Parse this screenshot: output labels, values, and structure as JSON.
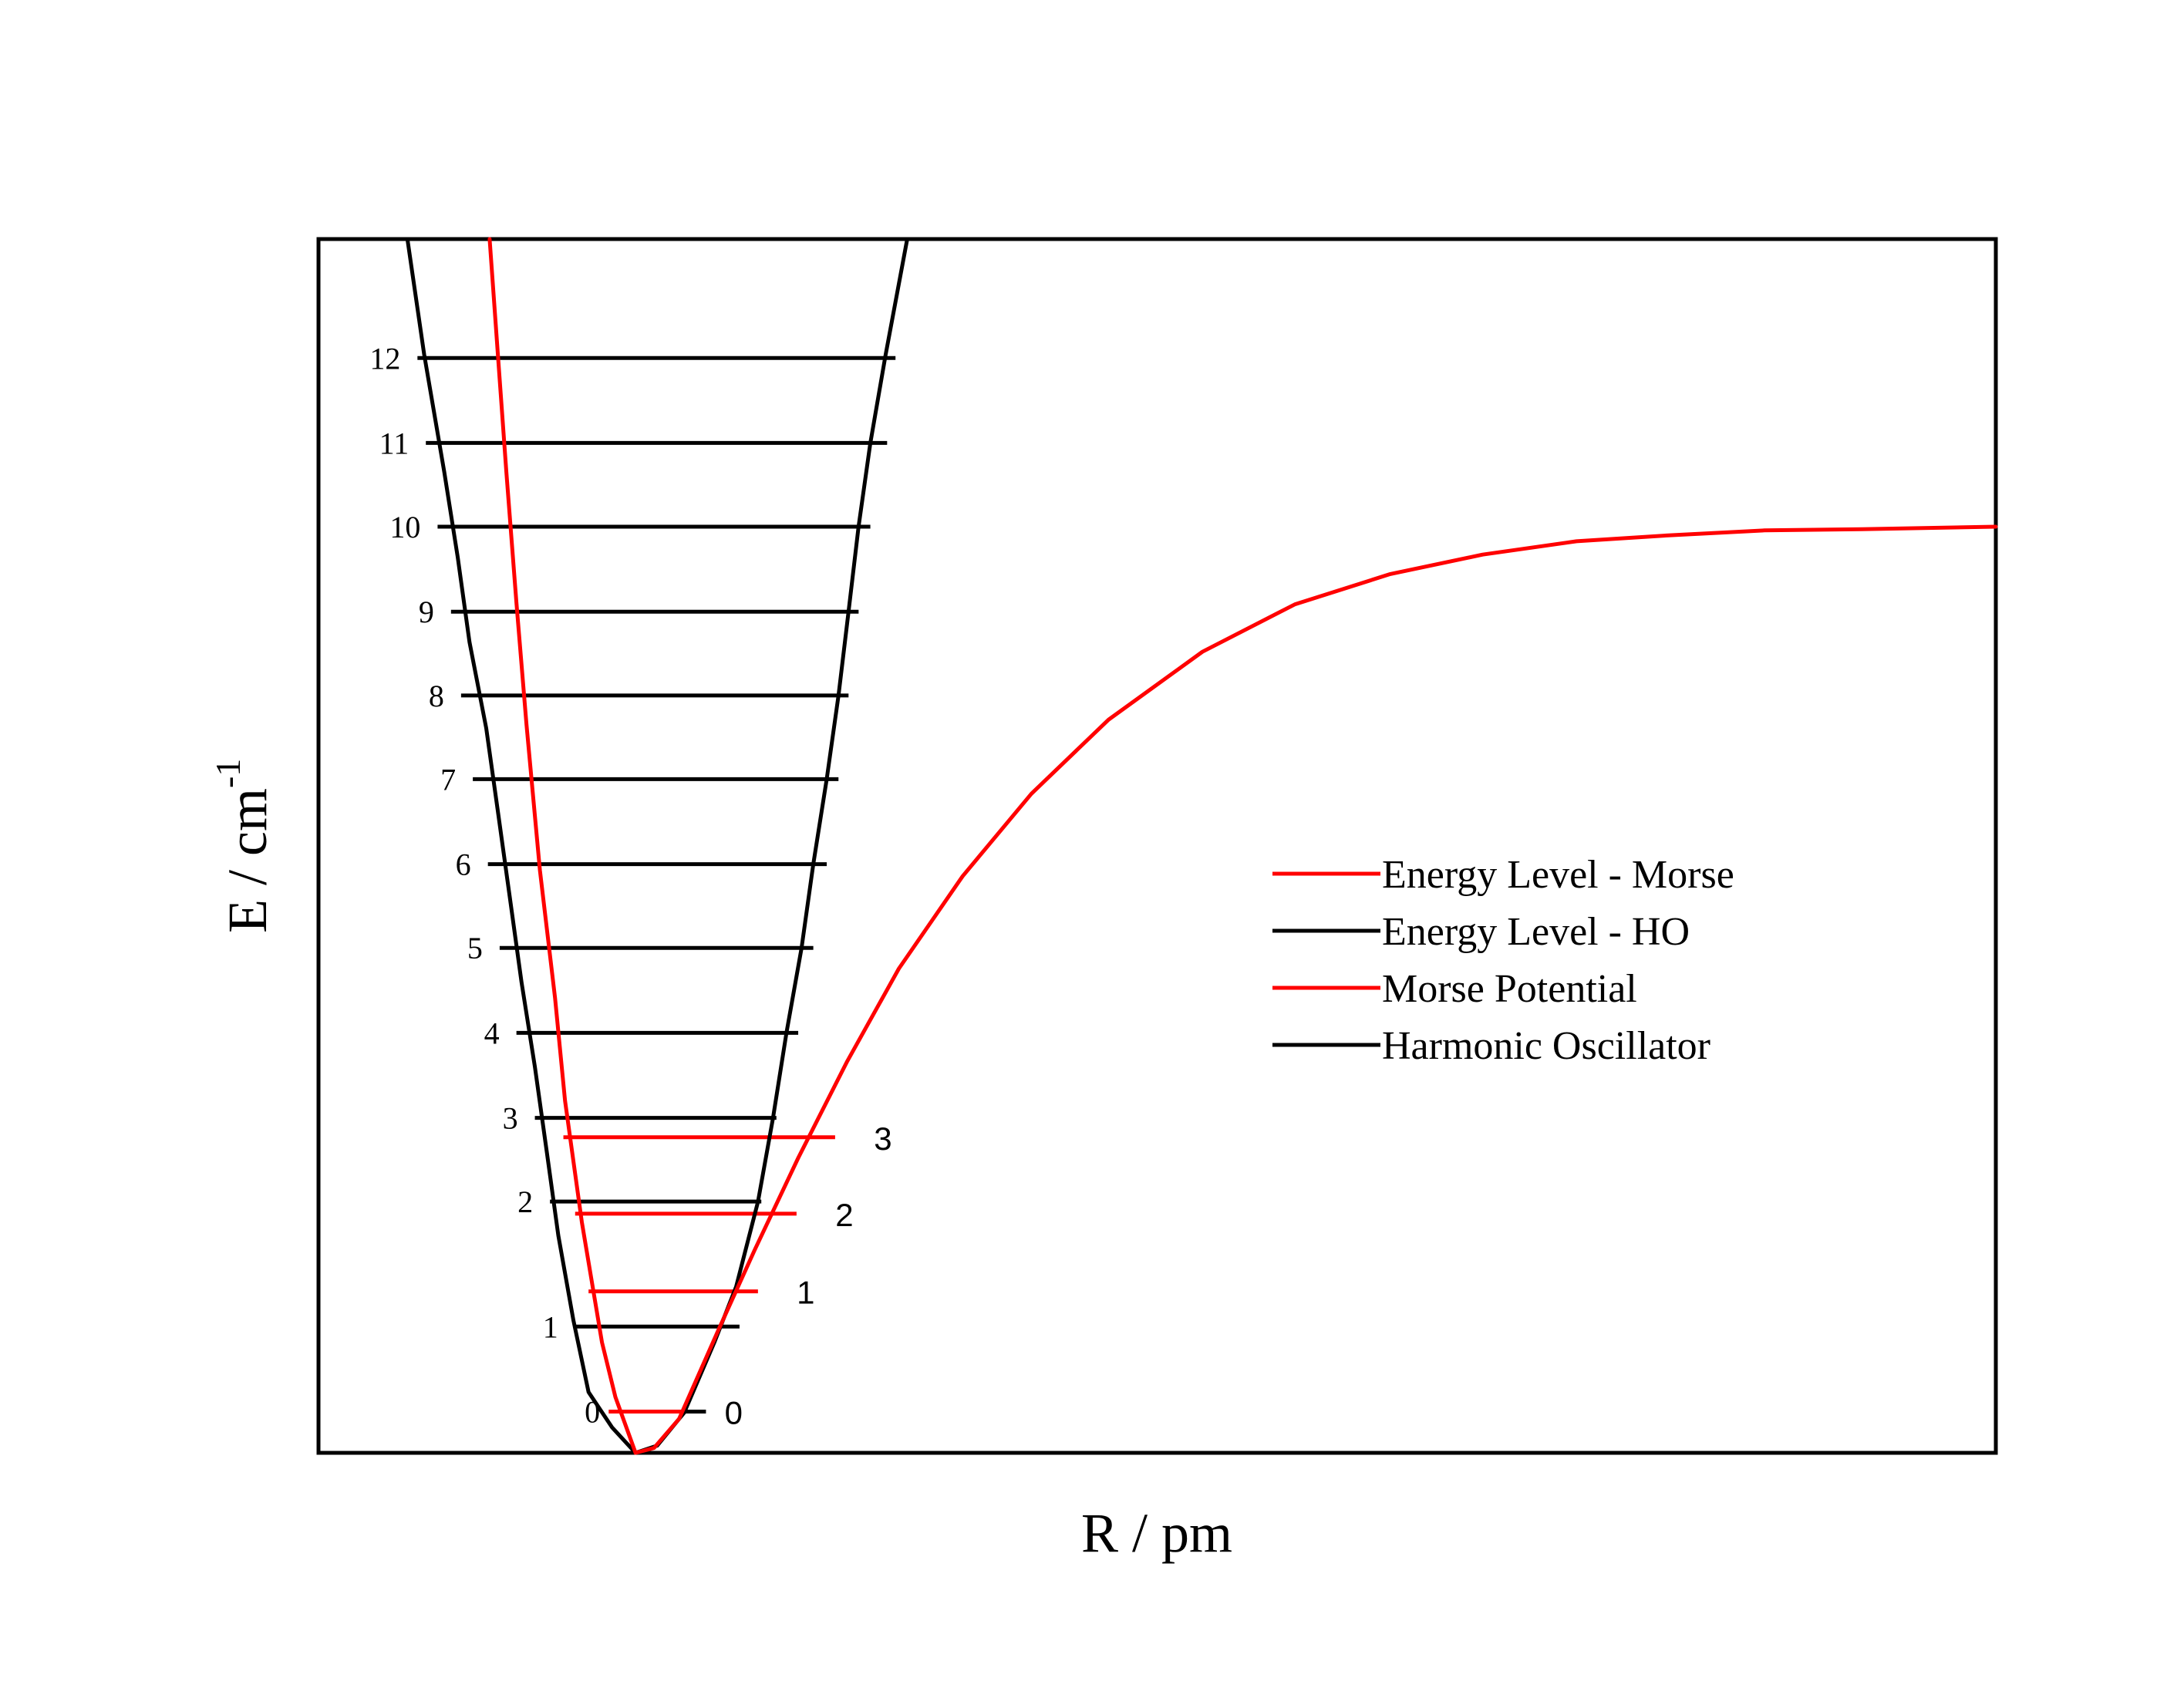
{
  "chart_data": {
    "type": "line",
    "title": "",
    "xlabel": "R / pm",
    "ylabel_main": "E / cm",
    "ylabel_sup": "-1",
    "show_axis_ticks": false,
    "grid": false,
    "legend": {
      "placement": "center-right",
      "entries": [
        {
          "label": "Energy Level - Morse",
          "color": "#ff0000"
        },
        {
          "label": "Energy Level - HO",
          "color": "#000000"
        },
        {
          "label": " Morse Potential",
          "color": "#ff0000"
        },
        {
          "label": " Harmonic Oscillator",
          "color": "#000000"
        }
      ]
    },
    "colors": {
      "morse": "#ff0000",
      "harmonic": "#000000"
    },
    "xlim": [
      0,
      100
    ],
    "ylim": [
      0,
      100
    ],
    "harmonic_oscillator": {
      "name": "Harmonic Oscillator",
      "points": [
        [
          5.3,
          100
        ],
        [
          6.3,
          90.5
        ],
        [
          7.5,
          80.8
        ],
        [
          8.3,
          73.8
        ],
        [
          9.0,
          66.8
        ],
        [
          10.0,
          59.7
        ],
        [
          10.7,
          52.8
        ],
        [
          11.4,
          45.8
        ],
        [
          12.1,
          38.8
        ],
        [
          12.9,
          31.8
        ],
        [
          13.6,
          24.9
        ],
        [
          14.3,
          17.9
        ],
        [
          15.2,
          10.9
        ],
        [
          16.1,
          5.0
        ],
        [
          17.5,
          2.1
        ],
        [
          18.9,
          0
        ],
        [
          20.2,
          0.6
        ],
        [
          21.8,
          3.3
        ],
        [
          23.6,
          9.1
        ],
        [
          24.9,
          13.7
        ],
        [
          26.2,
          20.7
        ],
        [
          27.1,
          27.6
        ],
        [
          27.9,
          34.6
        ],
        [
          28.8,
          41.6
        ],
        [
          29.5,
          48.5
        ],
        [
          30.3,
          55.5
        ],
        [
          31.0,
          62.4
        ],
        [
          31.6,
          69.3
        ],
        [
          32.2,
          76.3
        ],
        [
          32.9,
          83.2
        ],
        [
          33.8,
          90.4
        ],
        [
          35.1,
          100
        ]
      ]
    },
    "morse_potential": {
      "name": "Morse Potential",
      "points": [
        [
          10.2,
          100
        ],
        [
          10.7,
          90.4
        ],
        [
          11.2,
          80.8
        ],
        [
          11.8,
          70.0
        ],
        [
          12.4,
          60.0
        ],
        [
          13.2,
          48.0
        ],
        [
          14.1,
          37.5
        ],
        [
          14.7,
          29.0
        ],
        [
          15.7,
          19.0
        ],
        [
          16.9,
          9.1
        ],
        [
          17.7,
          4.6
        ],
        [
          18.9,
          0
        ],
        [
          20.0,
          0.4
        ],
        [
          21.5,
          2.8
        ],
        [
          23.8,
          10.0
        ],
        [
          26.0,
          16.7
        ],
        [
          28.6,
          24.3
        ],
        [
          31.5,
          32.2
        ],
        [
          34.6,
          39.9
        ],
        [
          38.4,
          47.5
        ],
        [
          42.5,
          54.3
        ],
        [
          47.1,
          60.4
        ],
        [
          52.7,
          66.0
        ],
        [
          58.2,
          69.9
        ],
        [
          63.9,
          72.4
        ],
        [
          69.4,
          74.0
        ],
        [
          75.0,
          75.1
        ],
        [
          80.6,
          75.6
        ],
        [
          86.2,
          76.0
        ],
        [
          92.0,
          76.1
        ],
        [
          100,
          76.3
        ]
      ]
    },
    "ho_levels": [
      {
        "v": "0",
        "label": "0",
        "x1": 17.8,
        "x2": 23.1,
        "y": 3.4
      },
      {
        "v": "1",
        "label": "1",
        "x1": 15.3,
        "x2": 25.1,
        "y": 10.4
      },
      {
        "v": "2",
        "label": "2",
        "x1": 13.8,
        "x2": 26.4,
        "y": 20.7
      },
      {
        "v": "3",
        "label": "3",
        "x1": 12.9,
        "x2": 27.3,
        "y": 27.6
      },
      {
        "v": "4",
        "label": "4",
        "x1": 11.8,
        "x2": 28.6,
        "y": 34.6
      },
      {
        "v": "5",
        "label": "5",
        "x1": 10.8,
        "x2": 29.5,
        "y": 41.6
      },
      {
        "v": "6",
        "label": "6",
        "x1": 10.1,
        "x2": 30.3,
        "y": 48.5
      },
      {
        "v": "7",
        "label": "7",
        "x1": 9.2,
        "x2": 31.0,
        "y": 55.5
      },
      {
        "v": "8",
        "label": "8",
        "x1": 8.5,
        "x2": 31.6,
        "y": 62.4
      },
      {
        "v": "9",
        "label": "9",
        "x1": 7.9,
        "x2": 32.2,
        "y": 69.3
      },
      {
        "v": "10",
        "label": "10",
        "x1": 7.1,
        "x2": 32.9,
        "y": 76.3
      },
      {
        "v": "11",
        "label": "11",
        "x1": 6.4,
        "x2": 33.9,
        "y": 83.2
      },
      {
        "v": "12",
        "label": "12",
        "x1": 5.9,
        "x2": 34.4,
        "y": 90.2
      }
    ],
    "morse_levels": [
      {
        "v": "0",
        "label": "0",
        "x1": 17.3,
        "x2": 21.9,
        "y": 3.4
      },
      {
        "v": "1",
        "label": "1",
        "x1": 16.1,
        "x2": 26.2,
        "y": 13.3
      },
      {
        "v": "2",
        "label": "2",
        "x1": 15.3,
        "x2": 28.5,
        "y": 19.7
      },
      {
        "v": "3",
        "label": "3",
        "x1": 14.6,
        "x2": 30.8,
        "y": 26.0
      }
    ]
  }
}
